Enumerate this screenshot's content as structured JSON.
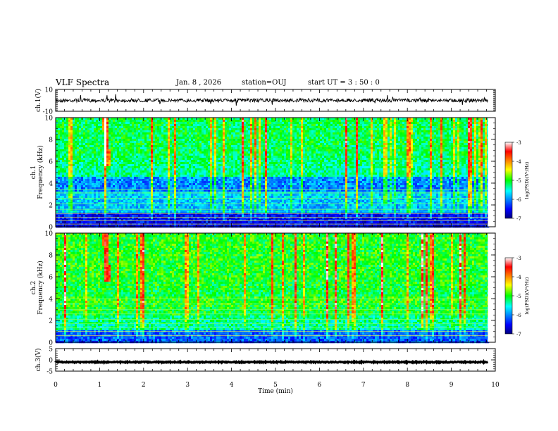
{
  "header": {
    "title": "VLF Spectra",
    "date": "Jan. 8 , 2026",
    "station": "station=OUJ",
    "start": "start UT = 3 : 50 : 0"
  },
  "chart_data": [
    {
      "type": "line",
      "panel": "waveform-ch1",
      "ylabel": "ch.1(V)",
      "ylim": [
        -10,
        10
      ],
      "yticks": [
        "10",
        "-10"
      ],
      "baseline": 0
    },
    {
      "type": "heatmap",
      "panel": "spectrogram-ch1",
      "ylabel": "ch.1\nFrequency (kHz)",
      "ylim": [
        0,
        10
      ],
      "yticks": [
        "10",
        "8",
        "6",
        "4",
        "2",
        "0"
      ],
      "colorbar": {
        "label": "log(PSD)(V²/Hz)",
        "range": [
          -7,
          -3
        ],
        "ticks": [
          "-3",
          "-4",
          "-5",
          "-6",
          "-7"
        ]
      }
    },
    {
      "type": "heatmap",
      "panel": "spectrogram-ch2",
      "ylabel": "ch.2\nFrequency (kHz)",
      "ylim": [
        0,
        10
      ],
      "yticks": [
        "10",
        "8",
        "6",
        "4",
        "2",
        "0"
      ],
      "colorbar": {
        "label": "log(PSD)(V²/Hz)",
        "range": [
          -7,
          -3
        ],
        "ticks": [
          "-3",
          "-4",
          "-5",
          "-6",
          "-7"
        ]
      }
    },
    {
      "type": "line",
      "panel": "waveform-ch3",
      "ylabel": "ch.3(V)",
      "ylim": [
        -5,
        5
      ],
      "yticks": [
        "5",
        "0",
        "-5"
      ],
      "baseline": -1
    }
  ],
  "xaxis": {
    "label": "Time (min)",
    "range": [
      0,
      10
    ],
    "ticks": [
      "0",
      "1",
      "2",
      "3",
      "4",
      "5",
      "6",
      "7",
      "8",
      "9",
      "10"
    ],
    "data_end": 9.83
  }
}
